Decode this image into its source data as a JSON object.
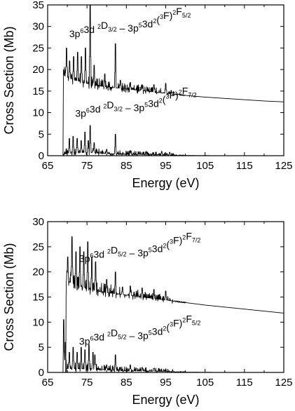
{
  "chart_data": [
    {
      "type": "line",
      "xlabel": "Energy (eV)",
      "ylabel": "Cross Section (Mb)",
      "xlim": [
        65,
        125
      ],
      "ylim": [
        0,
        35
      ],
      "xticks": [
        65,
        75,
        85,
        95,
        105,
        115,
        125
      ],
      "yticks": [
        0,
        5,
        10,
        15,
        20,
        25,
        30,
        35
      ],
      "grid": false,
      "annotations": [
        {
          "parts": [
            [
              "n",
              "3p"
            ],
            [
              "sup",
              "6"
            ],
            [
              "n",
              "3d "
            ],
            [
              "sup",
              "2"
            ],
            [
              "n",
              "D"
            ],
            [
              "sub",
              "3/2"
            ],
            [
              "n",
              " – 3p"
            ],
            [
              "sup",
              "5"
            ],
            [
              "n",
              "3d"
            ],
            [
              "sup",
              "2"
            ],
            [
              "n",
              "("
            ],
            [
              "sup",
              "3"
            ],
            [
              "n",
              "F)"
            ],
            [
              "sup",
              "2"
            ],
            [
              "n",
              "F"
            ],
            [
              "sub",
              "5/2"
            ]
          ],
          "at": [
            70.5,
            27.5
          ]
        },
        {
          "parts": [
            [
              "n",
              "3p"
            ],
            [
              "sup",
              "6"
            ],
            [
              "n",
              "3d "
            ],
            [
              "sup",
              "2"
            ],
            [
              "n",
              "D"
            ],
            [
              "sub",
              "3/2"
            ],
            [
              "n",
              " – 3p"
            ],
            [
              "sup",
              "5"
            ],
            [
              "n",
              "3d"
            ],
            [
              "sup",
              "2"
            ],
            [
              "n",
              "("
            ],
            [
              "sup",
              "3"
            ],
            [
              "n",
              "F)"
            ],
            [
              "sup",
              "2"
            ],
            [
              "n",
              "F"
            ],
            [
              "sub",
              "7/2"
            ]
          ],
          "at": [
            72,
            9
          ]
        }
      ],
      "series": [
        {
          "x": [
            65,
            68.9,
            69.0,
            69.4,
            70,
            71,
            72,
            73,
            74,
            75,
            76,
            77,
            78,
            80,
            82,
            84,
            86,
            88,
            90,
            92,
            94,
            96,
            98,
            100,
            105,
            110,
            115,
            120,
            125
          ],
          "y": [
            0,
            0,
            19.0,
            18.5,
            18.2,
            17.8,
            17.5,
            17.3,
            17.0,
            16.8,
            16.5,
            16.3,
            16.2,
            16.0,
            15.8,
            15.6,
            15.4,
            15.2,
            15.0,
            14.8,
            14.6,
            14.4,
            14.2,
            14.0,
            13.6,
            13.3,
            13.0,
            12.7,
            12.5
          ],
          "peaks": [
            [
              69.8,
              25
            ],
            [
              70.6,
              22
            ],
            [
              71.6,
              23
            ],
            [
              72.6,
              24
            ],
            [
              73.6,
              23
            ],
            [
              74.6,
              25
            ],
            [
              75.8,
              35
            ],
            [
              76.8,
              21
            ],
            [
              79.5,
              19
            ],
            [
              82.2,
              26
            ],
            [
              83.5,
              17.5
            ],
            [
              86,
              17
            ],
            [
              89,
              16.5
            ],
            [
              92,
              16.5
            ],
            [
              95,
              16.8
            ]
          ],
          "resonance_end": 97
        },
        {
          "x": [
            65,
            68.9,
            69.0,
            70,
            75,
            80,
            85,
            90,
            95,
            97,
            100,
            110,
            125
          ],
          "y": [
            0,
            0,
            0.3,
            0.6,
            0.8,
            0.5,
            0.3,
            0.3,
            0.2,
            0.1,
            0.05,
            0.0,
            0.0
          ],
          "peaks": [
            [
              70.5,
              4
            ],
            [
              71.5,
              4.5
            ],
            [
              72.5,
              4
            ],
            [
              73.5,
              3.5
            ],
            [
              74.5,
              5.5
            ],
            [
              75.3,
              3.5
            ],
            [
              75.8,
              7
            ],
            [
              76.8,
              3
            ],
            [
              80,
              1.5
            ],
            [
              82.2,
              5
            ],
            [
              86,
              1.2
            ],
            [
              90,
              1
            ],
            [
              94,
              1
            ],
            [
              96,
              0.8
            ]
          ],
          "resonance_end": 97
        }
      ]
    },
    {
      "type": "line",
      "xlabel": "Energy (eV)",
      "ylabel": "Cross Section (Mb)",
      "xlim": [
        65,
        125
      ],
      "ylim": [
        0,
        30
      ],
      "xticks": [
        65,
        75,
        85,
        95,
        105,
        115,
        125
      ],
      "yticks": [
        0,
        5,
        10,
        15,
        20,
        25,
        30
      ],
      "grid": false,
      "annotations": [
        {
          "parts": [
            [
              "n",
              "3p"
            ],
            [
              "sup",
              "6"
            ],
            [
              "n",
              "3d "
            ],
            [
              "sup",
              "2"
            ],
            [
              "n",
              "D"
            ],
            [
              "sub",
              "5/2"
            ],
            [
              "n",
              " – 3p"
            ],
            [
              "sup",
              "5"
            ],
            [
              "n",
              "3d"
            ],
            [
              "sup",
              "2"
            ],
            [
              "n",
              "("
            ],
            [
              "sup",
              "3"
            ],
            [
              "n",
              "F)"
            ],
            [
              "sup",
              "2"
            ],
            [
              "n",
              "F"
            ],
            [
              "sub",
              "7/2"
            ]
          ],
          "at": [
            73,
            22
          ]
        },
        {
          "parts": [
            [
              "n",
              "3p"
            ],
            [
              "sup",
              "6"
            ],
            [
              "n",
              "3d "
            ],
            [
              "sup",
              "2"
            ],
            [
              "n",
              "D"
            ],
            [
              "sub",
              "5/2"
            ],
            [
              "n",
              " – 3p"
            ],
            [
              "sup",
              "5"
            ],
            [
              "n",
              "3d"
            ],
            [
              "sup",
              "2"
            ],
            [
              "n",
              "("
            ],
            [
              "sup",
              "3"
            ],
            [
              "n",
              "F)"
            ],
            [
              "sup",
              "2"
            ],
            [
              "n",
              "F"
            ],
            [
              "sub",
              "5/2"
            ]
          ],
          "at": [
            73,
            5.5
          ]
        }
      ],
      "series": [
        {
          "x": [
            65,
            69.6,
            69.7,
            70,
            71,
            72,
            73,
            74,
            75,
            76,
            77,
            78,
            80,
            82,
            84,
            86,
            88,
            90,
            92,
            94,
            96,
            98,
            100,
            105,
            110,
            115,
            120,
            125
          ],
          "y": [
            0,
            0,
            18.5,
            18.2,
            17.8,
            17.5,
            17.2,
            17.0,
            16.7,
            16.5,
            16.3,
            16.1,
            15.9,
            15.7,
            15.5,
            15.3,
            15.1,
            14.9,
            14.7,
            14.5,
            14.3,
            14.1,
            13.9,
            13.4,
            13.0,
            12.6,
            12.2,
            11.8
          ],
          "peaks": [
            [
              70.1,
              23
            ],
            [
              71.2,
              27
            ],
            [
              72.2,
              24
            ],
            [
              73.2,
              25
            ],
            [
              74.2,
              24
            ],
            [
              75.2,
              26
            ],
            [
              76.2,
              23
            ],
            [
              77.2,
              22
            ],
            [
              80,
              18.5
            ],
            [
              82.2,
              20
            ],
            [
              84,
              17
            ],
            [
              86,
              17.2
            ],
            [
              89,
              16.8
            ],
            [
              92,
              16.5
            ],
            [
              95,
              16.2
            ]
          ],
          "resonance_end": 97
        },
        {
          "x": [
            65,
            68.9,
            69.0,
            70,
            75,
            80,
            85,
            90,
            95,
            97,
            100,
            110,
            125
          ],
          "y": [
            0,
            0,
            0.5,
            0.8,
            0.7,
            0.5,
            0.3,
            0.3,
            0.2,
            0.1,
            0.05,
            0.0,
            0.0
          ],
          "peaks": [
            [
              69.1,
              10.5
            ],
            [
              69.5,
              6
            ],
            [
              70.5,
              4
            ],
            [
              71.5,
              5
            ],
            [
              72.5,
              4
            ],
            [
              73.5,
              5
            ],
            [
              74.5,
              4.5
            ],
            [
              75.5,
              5.5
            ],
            [
              76.5,
              4
            ],
            [
              77,
              3.5
            ],
            [
              80,
              1.5
            ],
            [
              82.2,
              3.5
            ],
            [
              86,
              1.5
            ],
            [
              89,
              1
            ],
            [
              92,
              0.8
            ],
            [
              95,
              0.7
            ]
          ],
          "resonance_end": 97
        }
      ]
    }
  ]
}
